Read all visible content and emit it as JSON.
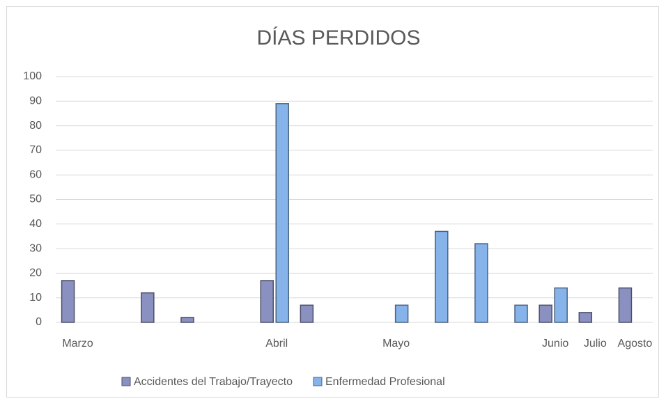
{
  "chart_data": {
    "type": "bar",
    "title": "DÍAS PERDIDOS",
    "categories": [
      "Marzo",
      null,
      null,
      null,
      null,
      "Abril",
      null,
      null,
      "Mayo",
      null,
      null,
      null,
      "Junio",
      "Julio",
      "Agosto"
    ],
    "series": [
      {
        "name": "Accidentes del Trabajo/Trayecto",
        "color": "#8a90c0",
        "values": [
          17,
          null,
          12,
          2,
          null,
          17,
          7,
          null,
          null,
          null,
          null,
          null,
          7,
          4,
          14
        ]
      },
      {
        "name": "Enfermedad Profesional",
        "color": "#86b4ea",
        "values": [
          null,
          null,
          null,
          null,
          null,
          89,
          null,
          null,
          7,
          37,
          32,
          7,
          14,
          null,
          null
        ]
      }
    ],
    "ylim": [
      0,
      100
    ],
    "yticks": [
      0,
      10,
      20,
      30,
      40,
      50,
      60,
      70,
      80,
      90,
      100
    ],
    "grid": true,
    "legend": "bottom"
  }
}
